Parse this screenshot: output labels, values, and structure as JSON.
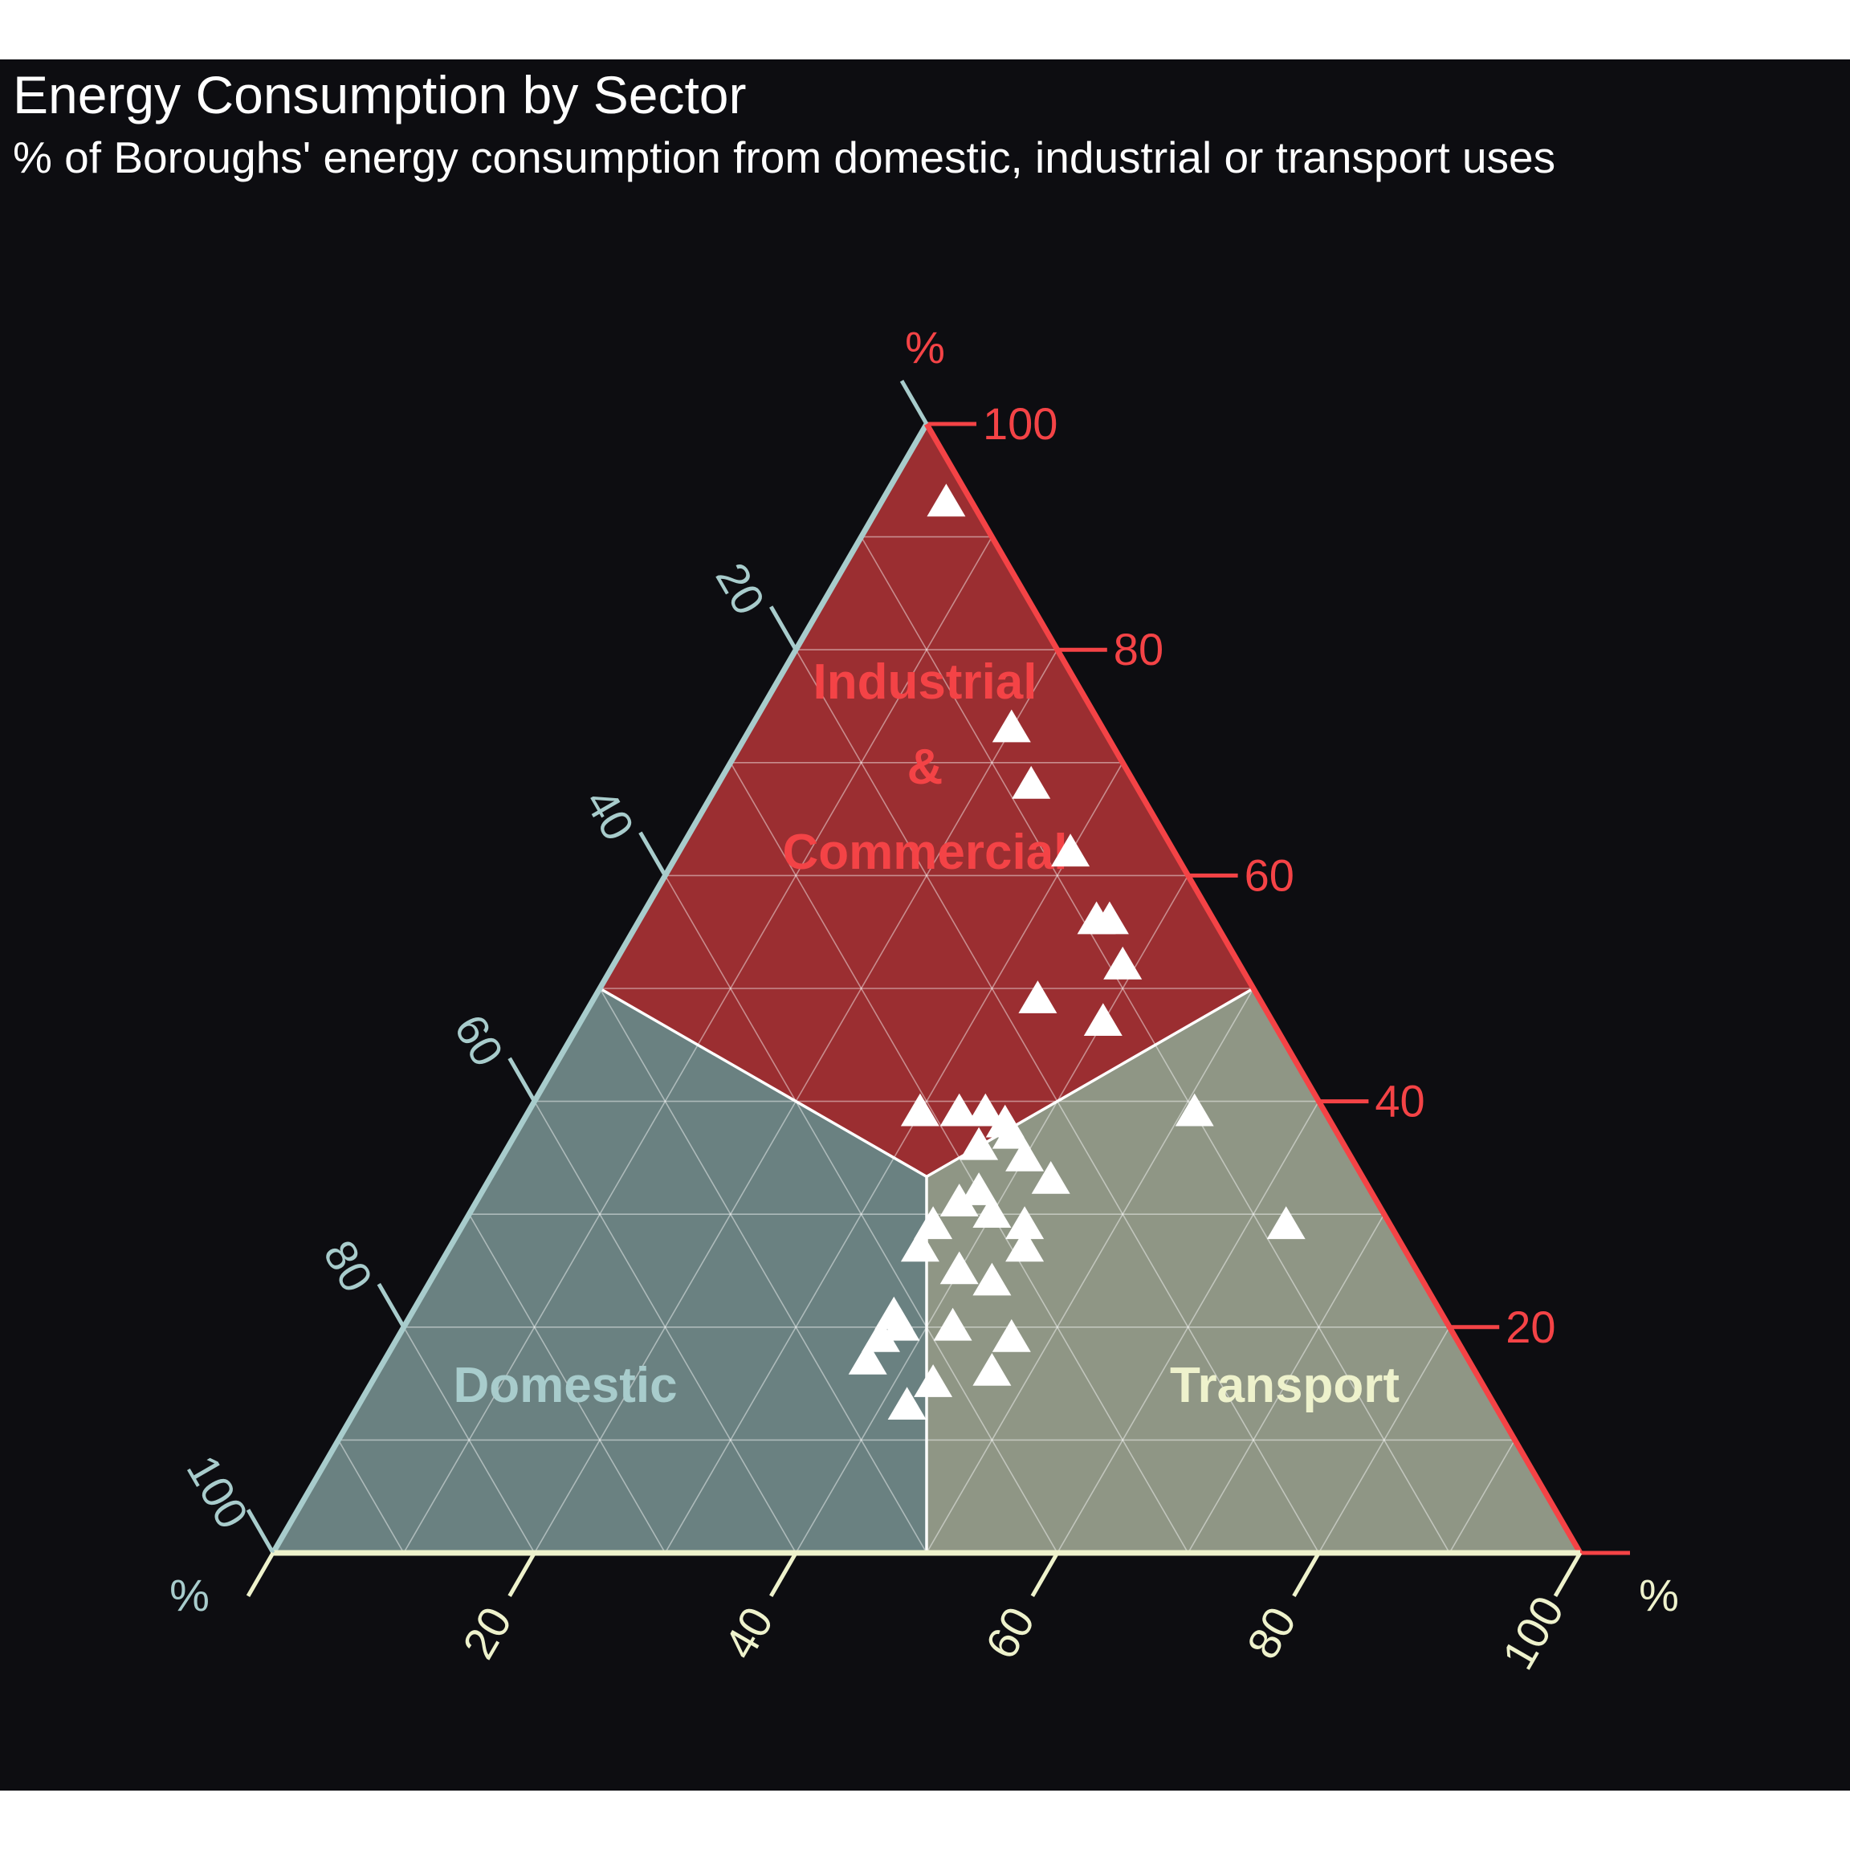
{
  "chart_data": {
    "type": "scatter",
    "subtype": "ternary",
    "title": "Energy Consumption by Sector",
    "subtitle": "% of Boroughs' energy consumption from domestic, industrial or transport uses",
    "axes": {
      "left": {
        "unit": "%",
        "color": "#a8cccc",
        "ticks": [
          "20",
          "40",
          "60",
          "80",
          "100"
        ]
      },
      "top": {
        "unit": "%",
        "color": "#f44346",
        "ticks": [
          "20",
          "40",
          "60",
          "80",
          "100"
        ]
      },
      "bottom": {
        "unit": "%",
        "color": "#eef2cc",
        "ticks": [
          "20",
          "40",
          "60",
          "80",
          "100"
        ]
      }
    },
    "regions": [
      {
        "label_lines": [
          "Industrial",
          "&",
          "Commercial"
        ],
        "fill": "#9b2e31",
        "label_color": "#f44346"
      },
      {
        "label_lines": [
          "Domestic"
        ],
        "fill": "#6a8181",
        "label_color": "#a8cccc"
      },
      {
        "label_lines": [
          "Transport"
        ],
        "fill": "#8f9685",
        "label_color": "#eef2cc"
      }
    ],
    "grid": true,
    "marker": "triangle",
    "marker_color": "#ffffff",
    "points": [
      {
        "t": 5,
        "r": 93
      },
      {
        "t": 20,
        "r": 73
      },
      {
        "t": 24,
        "r": 68
      },
      {
        "t": 30,
        "r": 62
      },
      {
        "t": 35,
        "r": 56
      },
      {
        "t": 36,
        "r": 56
      },
      {
        "t": 39,
        "r": 52
      },
      {
        "t": 34,
        "r": 49
      },
      {
        "t": 40,
        "r": 47
      },
      {
        "t": 30,
        "r": 39
      },
      {
        "t": 33,
        "r": 39
      },
      {
        "t": 35,
        "r": 39
      },
      {
        "t": 37,
        "r": 38
      },
      {
        "t": 38,
        "r": 37
      },
      {
        "t": 36,
        "r": 36
      },
      {
        "t": 40,
        "r": 35
      },
      {
        "t": 43,
        "r": 33
      },
      {
        "t": 38,
        "r": 32
      },
      {
        "t": 40,
        "r": 30
      },
      {
        "t": 37,
        "r": 31
      },
      {
        "t": 43,
        "r": 29
      },
      {
        "t": 36,
        "r": 29
      },
      {
        "t": 36,
        "r": 27
      },
      {
        "t": 44,
        "r": 27
      },
      {
        "t": 40,
        "r": 25
      },
      {
        "t": 43,
        "r": 24
      },
      {
        "t": 37,
        "r": 21
      },
      {
        "t": 38,
        "r": 20
      },
      {
        "t": 42,
        "r": 20
      },
      {
        "t": 47,
        "r": 19
      },
      {
        "t": 37,
        "r": 19
      },
      {
        "t": 37,
        "r": 17
      },
      {
        "t": 51,
        "r": 39
      },
      {
        "t": 47,
        "r": 16
      },
      {
        "t": 43,
        "r": 15
      },
      {
        "t": 42,
        "r": 13
      },
      {
        "t": 63,
        "r": 29
      }
    ]
  }
}
